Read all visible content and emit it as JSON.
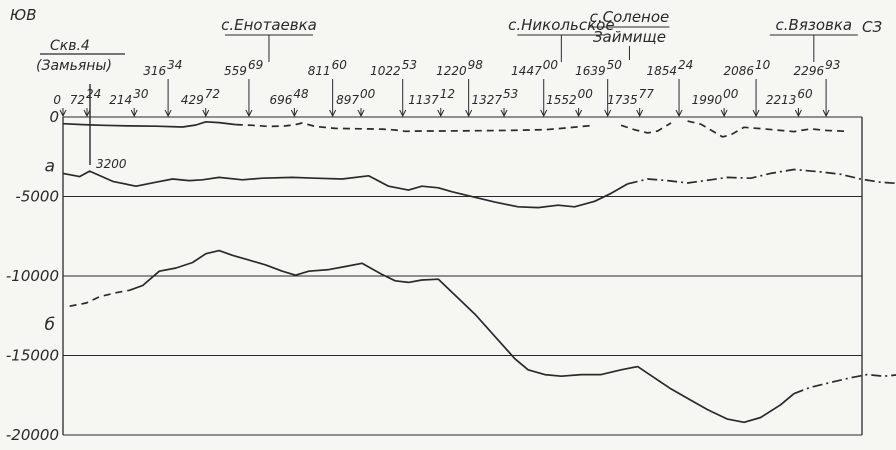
{
  "chart_data": {
    "type": "line",
    "direction_left": "ЮВ",
    "direction_right": "СЗ",
    "well_label": "Скв.4",
    "well_sublabel": "(Замьяны)",
    "well_depth_label": "3200",
    "villages": [
      {
        "name": "с.Енотаевка",
        "x": 620
      },
      {
        "name": "с.Никольское",
        "x": 1500
      },
      {
        "name": "с.Соленое Займище",
        "line1": "с.Соленое",
        "line2": "Займище",
        "x": 1705
      },
      {
        "name": "с.Вязовка",
        "x": 2260
      }
    ],
    "x_ticks": [
      {
        "main": "0",
        "sup": "",
        "x": 0,
        "row": "low"
      },
      {
        "main": "72",
        "sup": "24",
        "x": 72.24,
        "row": "low"
      },
      {
        "main": "214",
        "sup": "30",
        "x": 214.3,
        "row": "low"
      },
      {
        "main": "316",
        "sup": "34",
        "x": 316.34,
        "row": "high"
      },
      {
        "main": "429",
        "sup": "72",
        "x": 429.72,
        "row": "low"
      },
      {
        "main": "559",
        "sup": "69",
        "x": 559.69,
        "row": "high"
      },
      {
        "main": "696",
        "sup": "48",
        "x": 696.48,
        "row": "low"
      },
      {
        "main": "811",
        "sup": "60",
        "x": 811.6,
        "row": "high"
      },
      {
        "main": "897",
        "sup": "00",
        "x": 897.0,
        "row": "low"
      },
      {
        "main": "1022",
        "sup": "53",
        "x": 1022.53,
        "row": "high"
      },
      {
        "main": "1137",
        "sup": "12",
        "x": 1137.12,
        "row": "low"
      },
      {
        "main": "1220",
        "sup": "98",
        "x": 1220.98,
        "row": "high"
      },
      {
        "main": "1327",
        "sup": "53",
        "x": 1327.53,
        "row": "low"
      },
      {
        "main": "1447",
        "sup": "00",
        "x": 1447.0,
        "row": "high"
      },
      {
        "main": "1552",
        "sup": "00",
        "x": 1552.0,
        "row": "low"
      },
      {
        "main": "1639",
        "sup": "50",
        "x": 1639.5,
        "row": "high"
      },
      {
        "main": "1735",
        "sup": "77",
        "x": 1735.77,
        "row": "low"
      },
      {
        "main": "1854",
        "sup": "24",
        "x": 1854.24,
        "row": "high"
      },
      {
        "main": "1990",
        "sup": "00",
        "x": 1990.0,
        "row": "low"
      },
      {
        "main": "2086",
        "sup": "10",
        "x": 2086.1,
        "row": "high"
      },
      {
        "main": "2213",
        "sup": "60",
        "x": 2213.6,
        "row": "low"
      },
      {
        "main": "2296",
        "sup": "93",
        "x": 2296.93,
        "row": "high"
      }
    ],
    "xlim": [
      0,
      2405
    ],
    "y_ticks": [
      {
        "label": "0",
        "value": 0
      },
      {
        "label": "-5000",
        "value": -5000
      },
      {
        "label": "-10000",
        "value": -10000
      },
      {
        "label": "-15000",
        "value": -15000
      },
      {
        "label": "-20000",
        "value": -20000
      }
    ],
    "ylim": [
      -20000,
      0
    ],
    "gridlines_y": [
      0,
      -5000,
      -10000,
      -15000,
      -20000
    ],
    "series": [
      {
        "name": "",
        "label": "",
        "segments": [
          {
            "style": "solid",
            "points": [
              [
                0,
                -420
              ],
              [
                60,
                -480
              ],
              [
                120,
                -520
              ],
              [
                200,
                -560
              ],
              [
                280,
                -580
              ],
              [
                360,
                -630
              ],
              [
                400,
                -500
              ],
              [
                430,
                -300
              ],
              [
                470,
                -350
              ],
              [
                520,
                -480
              ]
            ]
          },
          {
            "style": "dashed",
            "points": [
              [
                520,
                -480
              ],
              [
                570,
                -520
              ],
              [
                620,
                -600
              ],
              [
                670,
                -560
              ],
              [
                700,
                -480
              ],
              [
                720,
                -380
              ],
              [
                760,
                -600
              ],
              [
                820,
                -720
              ],
              [
                900,
                -740
              ],
              [
                960,
                -760
              ],
              [
                1000,
                -820
              ],
              [
                1030,
                -900
              ],
              [
                1080,
                -880
              ],
              [
                1150,
                -880
              ],
              [
                1250,
                -860
              ],
              [
                1350,
                -840
              ],
              [
                1450,
                -800
              ],
              [
                1500,
                -720
              ],
              [
                1560,
                -600
              ],
              [
                1600,
                -520
              ]
            ]
          },
          {
            "style": "dashed",
            "points": [
              [
                1680,
                -520
              ],
              [
                1720,
                -800
              ],
              [
                1760,
                -1000
              ],
              [
                1790,
                -880
              ],
              [
                1810,
                -620
              ],
              [
                1830,
                -380
              ]
            ]
          },
          {
            "style": "dashed",
            "points": [
              [
                1880,
                -260
              ],
              [
                1920,
                -450
              ],
              [
                1955,
                -880
              ],
              [
                1985,
                -1250
              ],
              [
                2010,
                -1120
              ],
              [
                2050,
                -650
              ],
              [
                2120,
                -770
              ],
              [
                2200,
                -920
              ],
              [
                2250,
                -750
              ],
              [
                2300,
                -850
              ],
              [
                2360,
                -900
              ]
            ]
          }
        ]
      },
      {
        "name": "",
        "label": "а",
        "segments": [
          {
            "style": "solid",
            "points": [
              [
                0,
                -3550
              ],
              [
                50,
                -3750
              ],
              [
                80,
                -3400
              ],
              [
                150,
                -4050
              ],
              [
                220,
                -4350
              ],
              [
                280,
                -4100
              ],
              [
                330,
                -3900
              ],
              [
                380,
                -4000
              ],
              [
                420,
                -3950
              ],
              [
                470,
                -3800
              ],
              [
                540,
                -3950
              ],
              [
                600,
                -3850
              ],
              [
                690,
                -3800
              ],
              [
                760,
                -3850
              ],
              [
                840,
                -3900
              ],
              [
                920,
                -3700
              ],
              [
                980,
                -4350
              ],
              [
                1040,
                -4600
              ],
              [
                1080,
                -4350
              ],
              [
                1130,
                -4450
              ],
              [
                1170,
                -4700
              ],
              [
                1240,
                -5050
              ],
              [
                1300,
                -5350
              ],
              [
                1370,
                -5650
              ],
              [
                1430,
                -5700
              ],
              [
                1490,
                -5550
              ],
              [
                1540,
                -5650
              ],
              [
                1600,
                -5300
              ],
              [
                1650,
                -4800
              ],
              [
                1700,
                -4200
              ]
            ]
          },
          {
            "style": "dashdot",
            "points": [
              [
                1700,
                -4200
              ],
              [
                1760,
                -3900
              ],
              [
                1820,
                -4000
              ],
              [
                1880,
                -4150
              ],
              [
                1950,
                -3950
              ],
              [
                2000,
                -3800
              ],
              [
                2070,
                -3850
              ],
              [
                2130,
                -3550
              ],
              [
                2200,
                -3300
              ],
              [
                2280,
                -3450
              ],
              [
                2340,
                -3600
              ],
              [
                2400,
                -3900
              ],
              [
                2460,
                -4100
              ],
              [
                2530,
                -4200
              ]
            ]
          }
        ]
      },
      {
        "name": "",
        "label": "б",
        "segments": [
          {
            "style": "dashed",
            "points": [
              [
                20,
                -11900
              ],
              [
                70,
                -11700
              ],
              [
                110,
                -11300
              ],
              [
                160,
                -11050
              ],
              [
                200,
                -10900
              ]
            ]
          },
          {
            "style": "solid",
            "points": [
              [
                200,
                -10900
              ],
              [
                240,
                -10600
              ],
              [
                290,
                -9700
              ],
              [
                340,
                -9500
              ],
              [
                390,
                -9150
              ],
              [
                430,
                -8600
              ],
              [
                470,
                -8400
              ],
              [
                510,
                -8700
              ],
              [
                560,
                -9000
              ],
              [
                610,
                -9300
              ],
              [
                660,
                -9700
              ],
              [
                700,
                -9950
              ],
              [
                740,
                -9700
              ],
              [
                800,
                -9600
              ],
              [
                850,
                -9400
              ],
              [
                900,
                -9200
              ],
              [
                960,
                -9900
              ],
              [
                1000,
                -10300
              ],
              [
                1040,
                -10400
              ],
              [
                1080,
                -10250
              ],
              [
                1130,
                -10200
              ],
              [
                1180,
                -11200
              ],
              [
                1240,
                -12400
              ],
              [
                1300,
                -13800
              ],
              [
                1360,
                -15200
              ],
              [
                1400,
                -15900
              ],
              [
                1450,
                -16200
              ],
              [
                1500,
                -16300
              ],
              [
                1560,
                -16200
              ],
              [
                1620,
                -16200
              ],
              [
                1680,
                -15900
              ],
              [
                1730,
                -15700
              ],
              [
                1780,
                -16400
              ],
              [
                1830,
                -17100
              ],
              [
                1880,
                -17700
              ],
              [
                1940,
                -18400
              ],
              [
                2000,
                -19000
              ],
              [
                2050,
                -19200
              ],
              [
                2100,
                -18900
              ],
              [
                2160,
                -18100
              ],
              [
                2200,
                -17400
              ]
            ]
          },
          {
            "style": "dashdot",
            "points": [
              [
                2200,
                -17400
              ],
              [
                2250,
                -17000
              ],
              [
                2310,
                -16700
              ],
              [
                2370,
                -16400
              ],
              [
                2420,
                -16200
              ],
              [
                2470,
                -16300
              ],
              [
                2520,
                -16200
              ],
              [
                2570,
                -16100
              ],
              [
                2620,
                -15900
              ],
              [
                2670,
                -15700
              ],
              [
                2700,
                -15500
              ]
            ]
          }
        ]
      }
    ]
  }
}
